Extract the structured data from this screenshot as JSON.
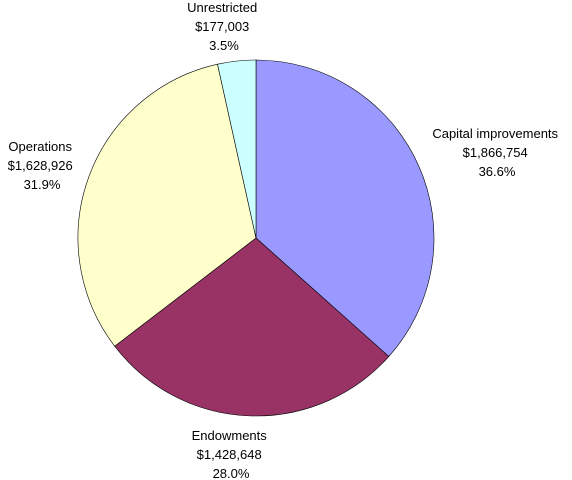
{
  "chart_data": {
    "type": "pie",
    "title": "",
    "start_angle_deg": 0,
    "direction": "clockwise",
    "slices": [
      {
        "name": "Capital improvements",
        "amount_label": "$1,866,754",
        "percent_label": "36.6%",
        "value": 1866754,
        "color": "#9999ff"
      },
      {
        "name": "Endowments",
        "amount_label": "$1,428,648",
        "percent_label": "28.0%",
        "value": 1428648,
        "color": "#993366"
      },
      {
        "name": "Operations",
        "amount_label": "$1,628,926",
        "percent_label": "31.9%",
        "value": 1628926,
        "color": "#ffffcc"
      },
      {
        "name": "Unrestricted",
        "amount_label": "$177,003",
        "percent_label": "3.5%",
        "value": 177003,
        "color": "#ccffff"
      }
    ],
    "legend": "none"
  }
}
